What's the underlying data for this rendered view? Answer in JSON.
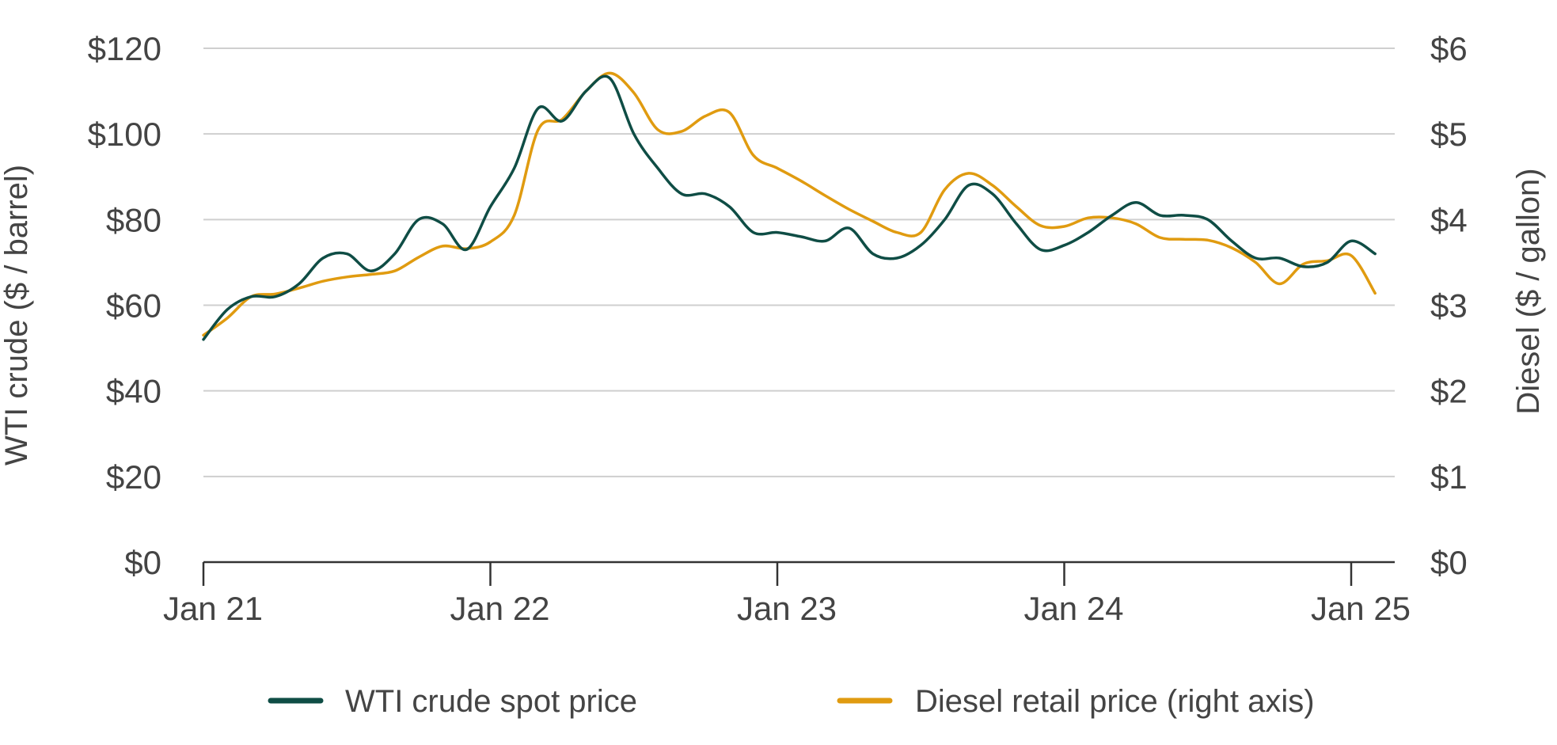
{
  "chart_data": {
    "type": "line",
    "title": "",
    "xlabel": "",
    "ylabel": "WTI crude ($ / barrel)",
    "ylabel_right": "Diesel ($ / gallon)",
    "x_ticks": [
      "Jan 21",
      "Jan 22",
      "Jan 23",
      "Jan 24",
      "Jan 25"
    ],
    "y_ticks": [
      "$0",
      "$20",
      "$40",
      "$60",
      "$80",
      "$100",
      "$120"
    ],
    "y_ticks_right": [
      "$0",
      "$1",
      "$2",
      "$3",
      "$4",
      "$5",
      "$6"
    ],
    "ylim": [
      0,
      120
    ],
    "ylim_right": [
      0,
      6
    ],
    "xlim": [
      "2021-01",
      "2025-02"
    ],
    "grid": "horizontal",
    "legend_position": "bottom",
    "x": [
      "2021-01",
      "2021-02",
      "2021-03",
      "2021-04",
      "2021-05",
      "2021-06",
      "2021-07",
      "2021-08",
      "2021-09",
      "2021-10",
      "2021-11",
      "2021-12",
      "2022-01",
      "2022-02",
      "2022-03",
      "2022-04",
      "2022-05",
      "2022-06",
      "2022-07",
      "2022-08",
      "2022-09",
      "2022-10",
      "2022-11",
      "2022-12",
      "2023-01",
      "2023-02",
      "2023-03",
      "2023-04",
      "2023-05",
      "2023-06",
      "2023-07",
      "2023-08",
      "2023-09",
      "2023-10",
      "2023-11",
      "2023-12",
      "2024-01",
      "2024-02",
      "2024-03",
      "2024-04",
      "2024-05",
      "2024-06",
      "2024-07",
      "2024-08",
      "2024-09",
      "2024-10",
      "2024-11",
      "2024-12",
      "2025-01",
      "2025-02"
    ],
    "series": [
      {
        "name": "WTI crude spot price",
        "axis": "left",
        "color": "#0f4d45",
        "values": [
          52,
          59,
          62,
          62,
          65,
          71,
          72,
          68,
          72,
          80,
          79,
          73,
          83,
          92,
          106,
          103,
          110,
          113,
          100,
          92,
          86,
          86,
          83,
          77,
          77,
          76,
          75,
          78,
          72,
          71,
          74,
          80,
          88,
          86,
          79,
          73,
          74,
          77,
          81,
          84,
          81,
          81,
          80,
          75,
          71,
          71,
          69,
          70,
          75,
          72
        ]
      },
      {
        "name": "Diesel retail price (right axis)",
        "axis": "right",
        "color": "#e09b10",
        "values": [
          2.65,
          2.85,
          3.1,
          3.13,
          3.2,
          3.28,
          3.33,
          3.36,
          3.4,
          3.56,
          3.69,
          3.66,
          3.74,
          4.05,
          5.05,
          5.17,
          5.5,
          5.71,
          5.48,
          5.05,
          5.03,
          5.21,
          5.25,
          4.75,
          4.6,
          4.45,
          4.28,
          4.12,
          3.98,
          3.85,
          3.85,
          4.35,
          4.54,
          4.4,
          4.15,
          3.93,
          3.92,
          4.02,
          4.02,
          3.95,
          3.79,
          3.77,
          3.76,
          3.67,
          3.5,
          3.25,
          3.48,
          3.52,
          3.58,
          3.14
        ]
      }
    ]
  }
}
